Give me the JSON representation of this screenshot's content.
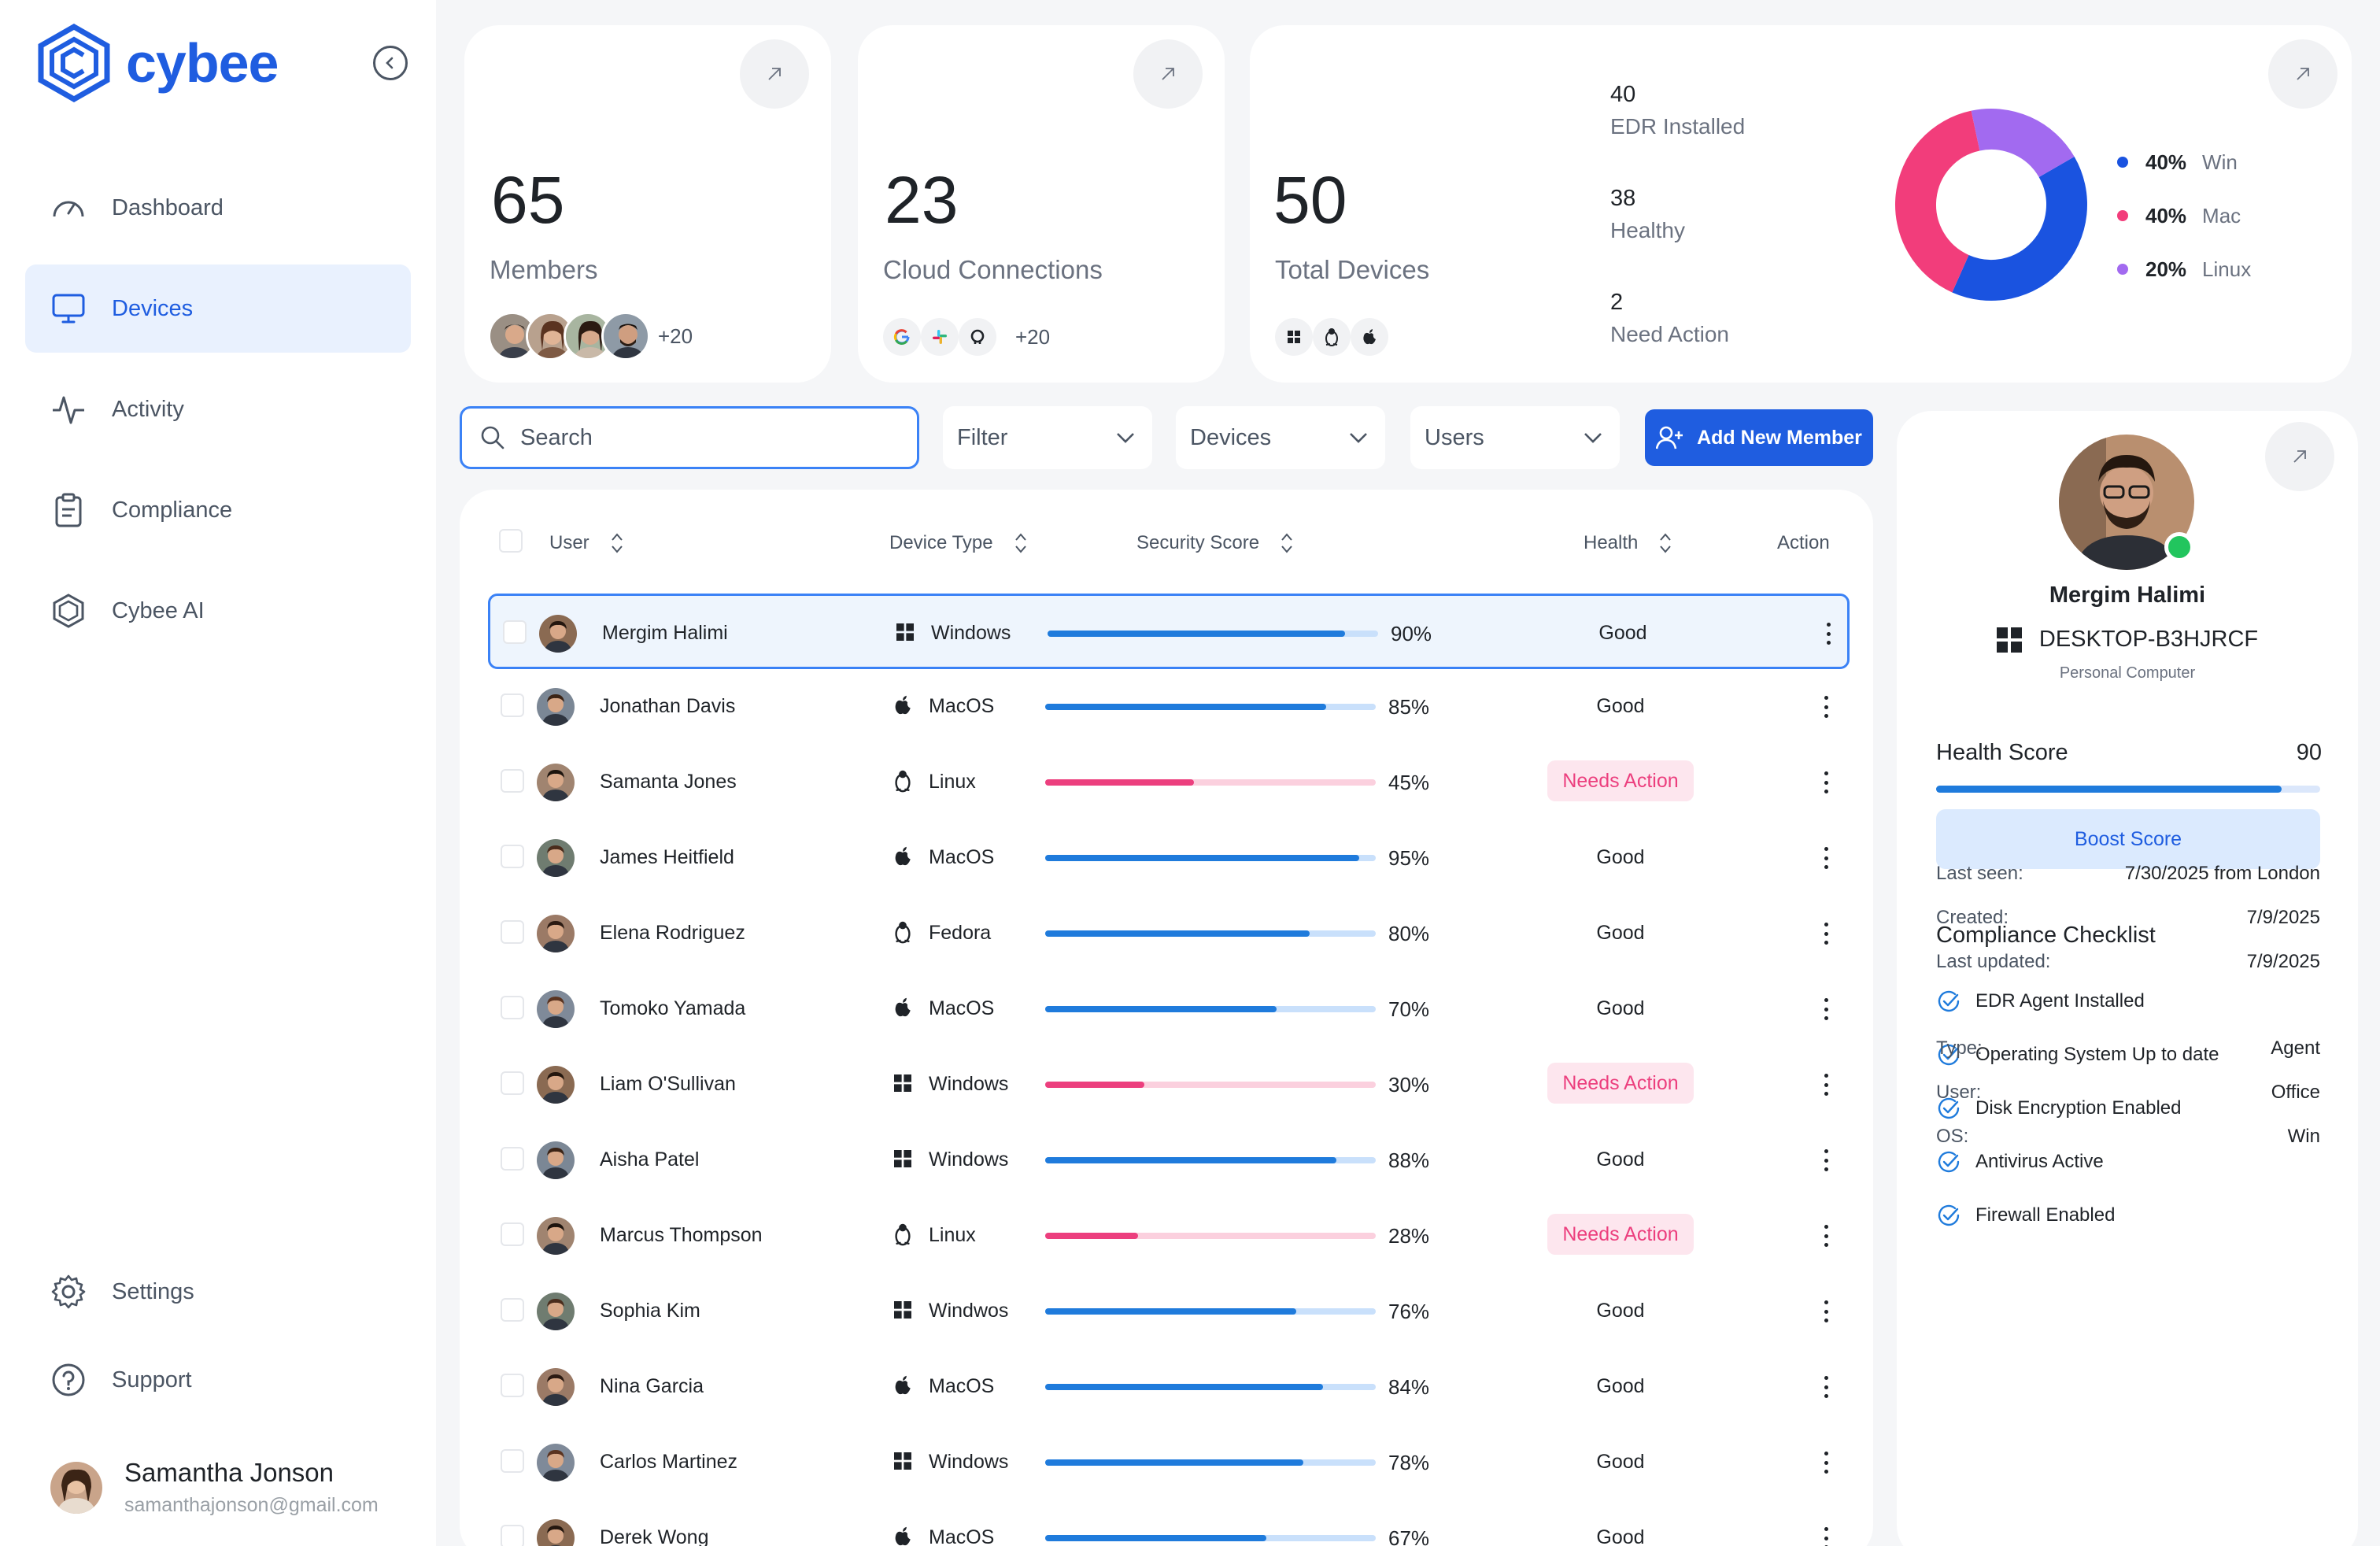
{
  "app": {
    "name": "cybee"
  },
  "nav": {
    "items": [
      {
        "label": "Dashboard",
        "icon": "gauge-icon"
      },
      {
        "label": "Devices",
        "icon": "monitor-icon",
        "active": true
      },
      {
        "label": "Activity",
        "icon": "activity-icon"
      },
      {
        "label": "Compliance",
        "icon": "clipboard-icon"
      },
      {
        "label": "Cybee AI",
        "icon": "hexagon-ai-icon"
      }
    ],
    "bottom": [
      {
        "label": "Settings",
        "icon": "gear-icon"
      },
      {
        "label": "Support",
        "icon": "help-circle-icon"
      }
    ]
  },
  "profile": {
    "name": "Samantha Jonson",
    "email": "samanthajonson@gmail.com"
  },
  "stats": {
    "members": {
      "value": "65",
      "label": "Members",
      "more": "+20"
    },
    "cloud": {
      "value": "23",
      "label": "Cloud Connections",
      "more": "+20"
    },
    "devices": {
      "value": "50",
      "label": "Total Devices",
      "edr": {
        "value": "40",
        "label": "EDR Installed"
      },
      "healthy": {
        "value": "38",
        "label": "Healthy"
      },
      "action": {
        "value": "2",
        "label": "Need Action"
      }
    }
  },
  "chart_data": {
    "type": "pie",
    "donut": true,
    "legend_position": "right",
    "slices": [
      {
        "label": "Win",
        "display": "40%",
        "value": 40,
        "color": "#1a53e0"
      },
      {
        "label": "Mac",
        "display": "40%",
        "value": 40,
        "color": "#f23d7b"
      },
      {
        "label": "Linux",
        "display": "20%",
        "value": 20,
        "color": "#a26af0"
      }
    ]
  },
  "toolbar": {
    "search_placeholder": "Search",
    "filter": "Filter",
    "devices": "Devices",
    "users": "Users",
    "add_member": "Add New Member"
  },
  "table": {
    "headers": {
      "user": "User",
      "device_type": "Device Type",
      "security_score": "Security Score",
      "health": "Health",
      "action": "Action"
    },
    "rows": [
      {
        "user": "Mergim Halimi",
        "os": "Windows",
        "os_icon": "windows-icon",
        "score": 90,
        "score_label": "90%",
        "health": "Good",
        "selected": true
      },
      {
        "user": "Jonathan Davis",
        "os": "MacOS",
        "os_icon": "apple-icon",
        "score": 85,
        "score_label": "85%",
        "health": "Good"
      },
      {
        "user": "Samanta Jones",
        "os": "Linux",
        "os_icon": "linux-icon",
        "score": 45,
        "score_label": "45%",
        "health": "Needs Action"
      },
      {
        "user": "James Heitfield",
        "os": "MacOS",
        "os_icon": "apple-icon",
        "score": 95,
        "score_label": "95%",
        "health": "Good"
      },
      {
        "user": "Elena Rodriguez",
        "os": "Fedora",
        "os_icon": "linux-icon",
        "score": 80,
        "score_label": "80%",
        "health": "Good"
      },
      {
        "user": "Tomoko Yamada",
        "os": "MacOS",
        "os_icon": "apple-icon",
        "score": 70,
        "score_label": "70%",
        "health": "Good"
      },
      {
        "user": "Liam O'Sullivan",
        "os": "Windows",
        "os_icon": "windows-icon",
        "score": 30,
        "score_label": "30%",
        "health": "Needs Action"
      },
      {
        "user": "Aisha Patel",
        "os": "Windows",
        "os_icon": "windows-icon",
        "score": 88,
        "score_label": "88%",
        "health": "Good"
      },
      {
        "user": "Marcus Thompson",
        "os": "Linux",
        "os_icon": "linux-icon",
        "score": 28,
        "score_label": "28%",
        "health": "Needs Action"
      },
      {
        "user": "Sophia Kim",
        "os": "Windwos",
        "os_icon": "windows-icon",
        "score": 76,
        "score_label": "76%",
        "health": "Good"
      },
      {
        "user": "Nina Garcia",
        "os": "MacOS",
        "os_icon": "apple-icon",
        "score": 84,
        "score_label": "84%",
        "health": "Good"
      },
      {
        "user": "Carlos Martinez",
        "os": "Windows",
        "os_icon": "windows-icon",
        "score": 78,
        "score_label": "78%",
        "health": "Good"
      },
      {
        "user": "Derek Wong",
        "os": "MacOS",
        "os_icon": "apple-icon",
        "score": 67,
        "score_label": "67%",
        "health": "Good"
      }
    ]
  },
  "detail": {
    "name": "Mergim Halimi",
    "device": "DESKTOP-B3HJRCF",
    "device_type": "Personal Computer",
    "health_label": "Health Score",
    "health_value": "90",
    "health_score": 90,
    "boost": "Boost Score",
    "checklist_title": "Compliance Checklist",
    "checklist": [
      "EDR Agent Installed",
      "Operating System Up to date",
      "Disk Encryption Enabled",
      "Antivirus Active",
      "Firewall Enabled"
    ],
    "meta": [
      {
        "k": "Last seen:",
        "v": "7/30/2025 from London"
      },
      {
        "k": "Created:",
        "v": "7/9/2025"
      },
      {
        "k": "Last updated:",
        "v": "7/9/2025"
      }
    ],
    "meta2": [
      {
        "k": "Type:",
        "v": "Agent"
      },
      {
        "k": "User:",
        "v": "Office"
      },
      {
        "k": "OS:",
        "v": "Win"
      }
    ]
  }
}
